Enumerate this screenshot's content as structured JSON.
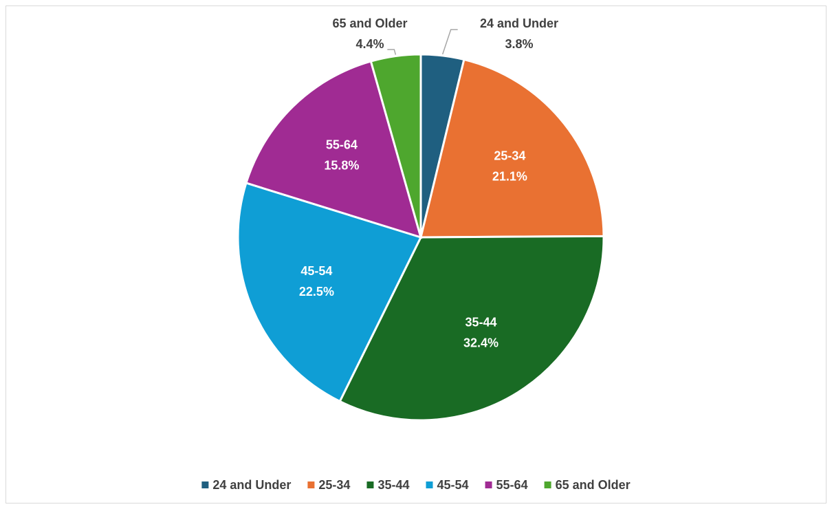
{
  "chart_data": {
    "type": "pie",
    "categories": [
      "24 and Under",
      "25-34",
      "35-44",
      "45-54",
      "55-64",
      "65 and Older"
    ],
    "values": [
      3.8,
      21.1,
      32.4,
      22.5,
      15.8,
      4.4
    ],
    "value_labels": [
      "3.8%",
      "21.1%",
      "32.4%",
      "22.5%",
      "15.8%",
      "4.4%"
    ],
    "colors": [
      "#1f5f80",
      "#e97132",
      "#196b24",
      "#0f9ed5",
      "#a02b93",
      "#4ea72e"
    ],
    "legend": "bottom"
  }
}
